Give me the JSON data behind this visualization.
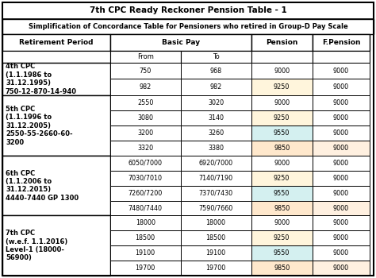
{
  "title": "7th CPC Ready Reckoner Pension Table - 1",
  "subtitle": "Simplification of Concordance Table for Pensioners who retired in Group-D Pay Scale",
  "groups": [
    {
      "label": "4th CPC\n(1.1.1986 to\n31.12.1995)\n750-12-870-14-940",
      "rows": [
        {
          "from": "750",
          "to": "968",
          "pension": "9000",
          "fpension": "9000"
        },
        {
          "from": "982",
          "to": "982",
          "pension": "9250",
          "fpension": "9000"
        }
      ]
    },
    {
      "label": "5th CPC\n(1.1.1996 to\n31.12.2005)\n2550-55-2660-60-\n3200",
      "rows": [
        {
          "from": "2550",
          "to": "3020",
          "pension": "9000",
          "fpension": "9000"
        },
        {
          "from": "3080",
          "to": "3140",
          "pension": "9250",
          "fpension": "9000"
        },
        {
          "from": "3200",
          "to": "3260",
          "pension": "9550",
          "fpension": "9000"
        },
        {
          "from": "3320",
          "to": "3380",
          "pension": "9850",
          "fpension": "9000"
        }
      ]
    },
    {
      "label": "6th CPC\n(1.1.2006 to\n31.12.2015)\n4440-7440 GP 1300",
      "rows": [
        {
          "from": "6050/7000",
          "to": "6920/7000",
          "pension": "9000",
          "fpension": "9000"
        },
        {
          "from": "7030/7010",
          "to": "7140/7190",
          "pension": "9250",
          "fpension": "9000"
        },
        {
          "from": "7260/7200",
          "to": "7370/7430",
          "pension": "9550",
          "fpension": "9000"
        },
        {
          "from": "7480/7440",
          "to": "7590/7660",
          "pension": "9850",
          "fpension": "9000"
        }
      ]
    },
    {
      "label": "7th CPC\n(w.e.f. 1.1.2016)\nLevel-1 (18000-\n56900)",
      "rows": [
        {
          "from": "18000",
          "to": "18000",
          "pension": "9000",
          "fpension": "9000"
        },
        {
          "from": "18500",
          "to": "18500",
          "pension": "9250",
          "fpension": "9000"
        },
        {
          "from": "19100",
          "to": "19100",
          "pension": "9550",
          "fpension": "9000"
        },
        {
          "from": "19700",
          "to": "19700",
          "pension": "9850",
          "fpension": "9000"
        }
      ]
    }
  ],
  "pension_colors": {
    "9000": "#ffffff",
    "9250": "#fff5dc",
    "9550": "#d4f0f0",
    "9850": "#ffe8cc"
  },
  "fpension_colors": {
    "9000": "#ffffff",
    "9250": "#ffffff",
    "9550": "#ffffff",
    "9850": "#fff0e0"
  },
  "border_color": "#000000",
  "bg_color": "#ffffff",
  "title_fontsize": 7.5,
  "subtitle_fontsize": 6.0,
  "header_fontsize": 6.5,
  "cell_fontsize": 5.8,
  "group_label_fontsize": 6.0
}
